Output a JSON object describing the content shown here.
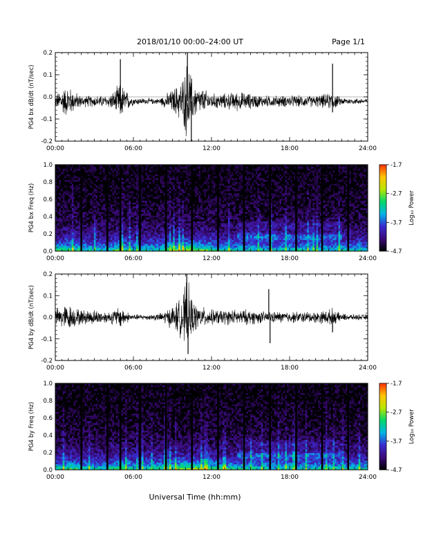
{
  "header": {
    "title": "2018/01/10   00:00–24:00 UT",
    "page": "Page 1/1"
  },
  "footer": {
    "xlabel": "Universal Time (hh:mm)"
  },
  "colors": {
    "trace": "#000000",
    "background": "#ffffff",
    "colorbar": [
      "#000000",
      "#3b0a78",
      "#3a2bd0",
      "#00b4e6",
      "#00d86a",
      "#b8e600",
      "#ffc400",
      "#ff3000"
    ]
  },
  "chart_data": [
    {
      "id": "bx-waveform",
      "type": "line",
      "ylabel": "PG4 bx dB/dt (nT/sec)",
      "x_ticks": [
        "00:00",
        "06:00",
        "12:00",
        "18:00",
        "24:00"
      ],
      "xlim": [
        0,
        24
      ],
      "ylim": [
        -0.2,
        0.2
      ],
      "y_ticks": [
        "0.2",
        "0.1",
        "0.0",
        "-0.1",
        "-0.2"
      ],
      "baseline": -0.02,
      "envelope": {
        "x": [
          0.0,
          0.5,
          1.0,
          1.5,
          2.0,
          3.0,
          4.0,
          4.5,
          5.0,
          5.5,
          6.0,
          7.0,
          8.0,
          9.0,
          9.3,
          9.6,
          9.9,
          10.1,
          10.3,
          10.5,
          10.7,
          11.0,
          11.5,
          12.0,
          13.0,
          14.0,
          15.0,
          16.0,
          17.0,
          18.0,
          19.0,
          20.0,
          21.0,
          21.3,
          21.6,
          22.0,
          23.0,
          24.0
        ],
        "amplitude": [
          0.03,
          0.07,
          0.08,
          0.05,
          0.03,
          0.03,
          0.03,
          0.05,
          0.1,
          0.05,
          0.02,
          0.015,
          0.015,
          0.06,
          0.08,
          0.1,
          0.14,
          0.2,
          0.18,
          0.12,
          0.09,
          0.07,
          0.06,
          0.04,
          0.04,
          0.05,
          0.04,
          0.03,
          0.03,
          0.03,
          0.03,
          0.03,
          0.04,
          0.05,
          0.03,
          0.02,
          0.015,
          0.015
        ]
      },
      "spikes": [
        {
          "x": 5.0,
          "y": 0.17
        },
        {
          "x": 10.15,
          "y": 0.2
        },
        {
          "x": 10.45,
          "y": -0.2
        },
        {
          "x": 21.3,
          "y": 0.15
        },
        {
          "x": 21.3,
          "y": -0.07
        }
      ]
    },
    {
      "id": "bx-spectrogram",
      "type": "heatmap",
      "ylabel": "PG4 bx Freq (Hz)",
      "x_ticks": [
        "00:00",
        "06:00",
        "12:00",
        "18:00",
        "24:00"
      ],
      "xlim": [
        0,
        24
      ],
      "ylim": [
        0,
        1
      ],
      "y_ticks": [
        "1.0",
        "0.8",
        "0.6",
        "0.4",
        "0.2",
        "0.0"
      ],
      "gaps_hours": [
        2.0,
        4.0,
        5.0,
        6.5,
        8.5,
        10.5,
        12.5,
        14.5,
        16.5,
        18.5,
        20.5,
        22.5
      ],
      "colorbar": {
        "label": "Log₁₀ Power",
        "range": [
          -4.7,
          -1.7
        ],
        "ticks": [
          "-1.7",
          "-2.7",
          "-3.7",
          "-4.7"
        ]
      }
    },
    {
      "id": "by-waveform",
      "type": "line",
      "ylabel": "PG4 by dB/dt (nT/sec)",
      "x_ticks": [
        "00:00",
        "06:00",
        "12:00",
        "18:00",
        "24:00"
      ],
      "xlim": [
        0,
        24
      ],
      "ylim": [
        -0.2,
        0.2
      ],
      "y_ticks": [
        "0.2",
        "0.1",
        "0.0",
        "-0.1",
        "-0.2"
      ],
      "baseline": 0.0,
      "envelope": {
        "x": [
          0.0,
          0.5,
          1.0,
          1.5,
          2.0,
          3.0,
          4.0,
          4.5,
          5.0,
          5.5,
          6.0,
          7.0,
          8.0,
          9.0,
          9.3,
          9.6,
          9.9,
          10.1,
          10.3,
          10.5,
          10.7,
          11.0,
          11.5,
          12.0,
          13.0,
          14.0,
          15.0,
          16.0,
          17.0,
          18.0,
          19.0,
          20.0,
          21.0,
          21.3,
          21.6,
          22.0,
          23.0,
          24.0
        ],
        "amplitude": [
          0.04,
          0.06,
          0.07,
          0.05,
          0.04,
          0.04,
          0.03,
          0.04,
          0.06,
          0.03,
          0.015,
          0.015,
          0.02,
          0.06,
          0.08,
          0.1,
          0.15,
          0.19,
          0.16,
          0.1,
          0.08,
          0.06,
          0.05,
          0.04,
          0.04,
          0.04,
          0.04,
          0.03,
          0.03,
          0.03,
          0.03,
          0.03,
          0.04,
          0.05,
          0.03,
          0.02,
          0.015,
          0.015
        ]
      },
      "spikes": [
        {
          "x": 10.1,
          "y": 0.2
        },
        {
          "x": 10.2,
          "y": -0.17
        },
        {
          "x": 16.4,
          "y": 0.13
        },
        {
          "x": 16.5,
          "y": -0.12
        },
        {
          "x": 21.3,
          "y": -0.07
        }
      ]
    },
    {
      "id": "by-spectrogram",
      "type": "heatmap",
      "ylabel": "PG4 by Freq (Hz)",
      "x_ticks": [
        "00:00",
        "06:00",
        "12:00",
        "18:00",
        "24:00"
      ],
      "xlim": [
        0,
        24
      ],
      "ylim": [
        0,
        1
      ],
      "y_ticks": [
        "1.0",
        "0.8",
        "0.6",
        "0.4",
        "0.2",
        "0.0"
      ],
      "gaps_hours": [
        2.0,
        4.0,
        5.0,
        6.5,
        8.5,
        10.5,
        12.5,
        14.5,
        16.5,
        18.5,
        20.5,
        22.5
      ],
      "colorbar": {
        "label": "Log₁₀ Power",
        "range": [
          -4.7,
          -1.7
        ],
        "ticks": [
          "-1.7",
          "-2.7",
          "-3.7",
          "-4.7"
        ]
      }
    }
  ]
}
